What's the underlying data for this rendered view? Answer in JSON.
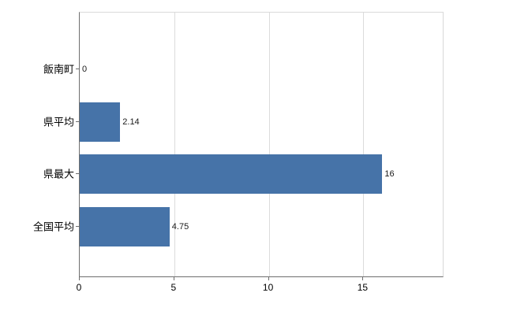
{
  "chart_data": {
    "type": "bar",
    "orientation": "horizontal",
    "title": "",
    "xlabel": "",
    "ylabel": "",
    "categories": [
      "飯南町",
      "県平均",
      "県最大",
      "全国平均"
    ],
    "values": [
      0,
      2.14,
      16,
      4.75
    ],
    "value_labels": [
      "0",
      "2.14",
      "16",
      "4.75"
    ],
    "xlim": [
      0,
      19.2
    ],
    "xticks": [
      0,
      5,
      10,
      15
    ],
    "xtick_labels": [
      "0",
      "5",
      "10",
      "15"
    ],
    "grid": true,
    "legend": "none",
    "bar_color": "#4673a8",
    "axis_color": "#6e6e6e",
    "grid_color": "#dcdcdc",
    "background_color": "#ffffff"
  }
}
